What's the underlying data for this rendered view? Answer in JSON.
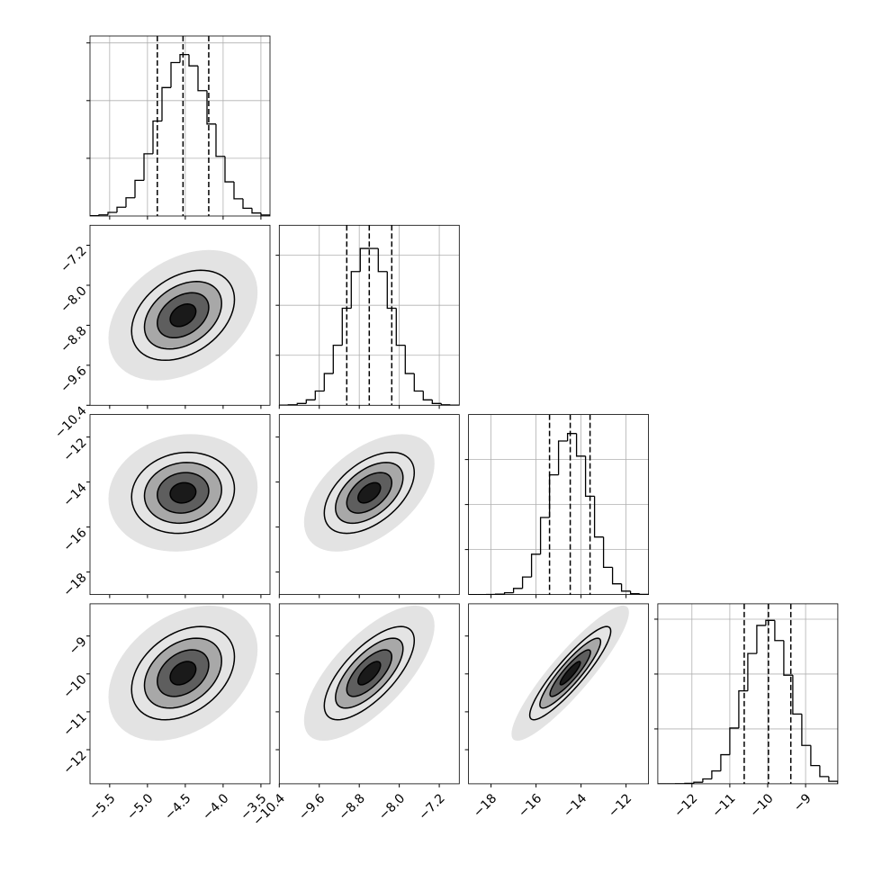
{
  "chart_data": {
    "type": "corner",
    "grid": true,
    "levels": [
      0.5,
      1,
      1.5,
      2
    ],
    "colors": {
      "line": "#000000",
      "scatter": "#b0b0b0",
      "grid": "#b0b0b0"
    },
    "correlations": [
      [
        0.35
      ],
      [
        0.1,
        0.5
      ],
      [
        0.35,
        0.7,
        0.9
      ]
    ],
    "parameters": [
      {
        "lim": [
          -5.76,
          -3.38
        ],
        "ticks": [
          {
            "value": -5.5,
            "label": "−5.5"
          },
          {
            "value": -5.0,
            "label": "−5.0"
          },
          {
            "value": -4.5,
            "label": "−4.5"
          },
          {
            "value": -4.0,
            "label": "−4.0"
          },
          {
            "value": -3.5,
            "label": "−3.5"
          }
        ],
        "quantiles": [
          -4.87,
          -4.53,
          -4.19
        ],
        "bins": [
          -5.76,
          -5.641,
          -5.522,
          -5.403,
          -5.284,
          -5.165,
          -5.046,
          -4.927,
          -4.808,
          -4.689,
          -4.57,
          -4.451,
          -4.332,
          -4.213,
          -4.094,
          -3.975,
          -3.856,
          -3.737,
          -3.618,
          -3.499,
          -3.38
        ],
        "counts": [
          3,
          10,
          31,
          76,
          158,
          309,
          539,
          823,
          1113,
          1330,
          1399,
          1301,
          1086,
          797,
          517,
          296,
          149,
          67,
          26,
          9
        ],
        "ylim": [
          0,
          1560
        ],
        "yticks": [
          500,
          1000,
          1500
        ]
      },
      {
        "lim": [
          -10.4,
          -6.8
        ],
        "ticks": [
          {
            "value": -10.4,
            "label": "−10.4"
          },
          {
            "value": -9.6,
            "label": "−9.6"
          },
          {
            "value": -8.8,
            "label": "−8.8"
          },
          {
            "value": -8.0,
            "label": "−8.0"
          },
          {
            "value": -7.2,
            "label": "−7.2"
          }
        ],
        "quantiles": [
          -9.05,
          -8.6,
          -8.15
        ],
        "bins": [
          -10.4,
          -10.22,
          -10.04,
          -9.86,
          -9.68,
          -9.5,
          -9.32,
          -9.14,
          -8.96,
          -8.78,
          -8.6,
          -8.42,
          -8.24,
          -8.06,
          -7.88,
          -7.7,
          -7.52,
          -7.34,
          -7.16,
          -6.98,
          -6.8
        ],
        "counts": [
          1,
          5,
          18,
          54,
          142,
          317,
          600,
          970,
          1337,
          1568,
          1568,
          1337,
          970,
          600,
          317,
          142,
          54,
          18,
          5,
          1
        ],
        "ylim": [
          0,
          1800
        ],
        "yticks": [
          500,
          1000,
          1500
        ]
      },
      {
        "lim": [
          -19,
          -11
        ],
        "ticks": [
          {
            "value": -18,
            "label": "−18"
          },
          {
            "value": -16,
            "label": "−16"
          },
          {
            "value": -14,
            "label": "−14"
          },
          {
            "value": -12,
            "label": "−12"
          }
        ],
        "quantiles": [
          -15.4,
          -14.48,
          -13.6
        ],
        "bins": [
          -19,
          -18.6,
          -18.2,
          -17.8,
          -17.4,
          -17,
          -16.6,
          -16.2,
          -15.8,
          -15.4,
          -15,
          -14.6,
          -14.2,
          -13.8,
          -13.4,
          -13,
          -12.6,
          -12.2,
          -11.8,
          -11.4,
          -11
        ],
        "counts": [
          0,
          0,
          1,
          5,
          20,
          68,
          195,
          448,
          856,
          1330,
          1706,
          1789,
          1538,
          1092,
          639,
          302,
          119,
          38,
          10,
          2
        ],
        "ylim": [
          0,
          2000
        ],
        "yticks": [
          500,
          1000,
          1500
        ]
      },
      {
        "lim": [
          -12.9,
          -8.15
        ],
        "ticks": [
          {
            "value": -12,
            "label": "−12"
          },
          {
            "value": -11,
            "label": "−11"
          },
          {
            "value": -10,
            "label": "−10"
          },
          {
            "value": -9,
            "label": "−9"
          }
        ],
        "quantiles": [
          -10.62,
          -9.98,
          -9.39
        ],
        "bins": [
          -12.9,
          -12.6625,
          -12.425,
          -12.1875,
          -11.95,
          -11.7125,
          -11.475,
          -11.2375,
          -11,
          -10.7625,
          -10.525,
          -10.2875,
          -10.05,
          -9.8125,
          -9.575,
          -9.3375,
          -9.1,
          -8.8625,
          -8.625,
          -8.3875,
          -8.15
        ],
        "counts": [
          0,
          0,
          1,
          4,
          14,
          44,
          117,
          265,
          508,
          847,
          1187,
          1443,
          1489,
          1305,
          990,
          636,
          350,
          166,
          66,
          23
        ],
        "ylim": [
          0,
          1640
        ],
        "yticks": [
          500,
          1000,
          1500
        ]
      }
    ]
  }
}
